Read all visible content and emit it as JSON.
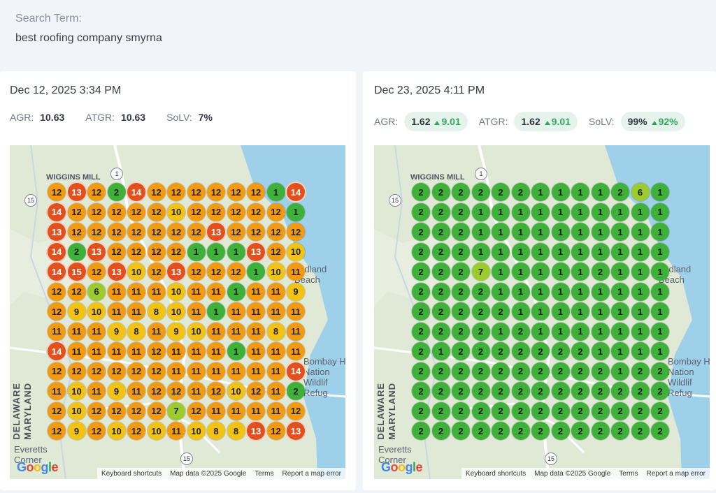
{
  "search": {
    "label": "Search Term:",
    "value": "best roofing company smyrna"
  },
  "colors": {
    "green": "#3fb13a",
    "lime": "#9ccb2e",
    "yellow": "#f2c314",
    "orange": "#f39a13",
    "red": "#e1501d",
    "water": "#9fd0ea",
    "land": "#dde8d2",
    "pill_bg": "#e6f3ec",
    "up": "#2faa5c"
  },
  "map_common": {
    "place_wiggins": "WIGGINS MILL",
    "place_woodland": "oodland\nBeach",
    "place_everetts": "Everetts\nCorner",
    "place_bombay": "Bombay H\nNation\nWildlif\nRefug",
    "state_de": "DELAWARE",
    "state_md": "MARYLAND",
    "route_1": "1",
    "route_15": "15",
    "route_15b": "15",
    "logo": "Google",
    "keyboard": "Keyboard shortcuts",
    "mapdata": "Map data ©2025 Google",
    "terms": "Terms",
    "report": "Report a map error"
  },
  "reports": [
    {
      "date": "Dec 12, 2025 3:34 PM",
      "agr_label": "AGR:",
      "agr": "10.63",
      "atgr_label": "ATGR:",
      "atgr": "10.63",
      "solv_label": "SoLV:",
      "solv": "7%",
      "grid": [
        [
          12,
          13,
          12,
          2,
          14,
          12,
          12,
          12,
          12,
          12,
          12,
          1,
          14
        ],
        [
          14,
          12,
          12,
          12,
          12,
          12,
          10,
          12,
          12,
          12,
          12,
          12,
          1
        ],
        [
          13,
          12,
          12,
          12,
          12,
          12,
          12,
          12,
          13,
          12,
          12,
          12,
          12
        ],
        [
          14,
          2,
          13,
          12,
          12,
          12,
          12,
          1,
          1,
          1,
          13,
          12,
          10
        ],
        [
          14,
          15,
          12,
          13,
          10,
          12,
          13,
          12,
          12,
          12,
          1,
          10,
          11
        ],
        [
          12,
          12,
          6,
          11,
          11,
          11,
          10,
          11,
          11,
          1,
          11,
          11,
          9
        ],
        [
          12,
          9,
          10,
          11,
          11,
          8,
          10,
          11,
          1,
          11,
          11,
          11,
          11
        ],
        [
          11,
          11,
          11,
          9,
          8,
          11,
          9,
          10,
          11,
          11,
          11,
          8,
          11
        ],
        [
          14,
          11,
          11,
          11,
          11,
          12,
          11,
          11,
          11,
          1,
          11,
          11,
          11
        ],
        [
          12,
          12,
          12,
          12,
          12,
          12,
          11,
          11,
          11,
          11,
          11,
          11,
          14
        ],
        [
          11,
          10,
          11,
          9,
          11,
          12,
          12,
          11,
          12,
          10,
          12,
          11,
          2
        ],
        [
          12,
          10,
          12,
          12,
          12,
          12,
          7,
          12,
          11,
          11,
          11,
          11,
          12
        ],
        [
          12,
          9,
          12,
          10,
          12,
          10,
          11,
          10,
          8,
          8,
          13,
          12,
          13
        ]
      ]
    },
    {
      "date": "Dec 23, 2025 4:11 PM",
      "agr_label": "AGR:",
      "agr": "1.62",
      "agr_delta": "9.01",
      "atgr_label": "ATGR:",
      "atgr": "1.62",
      "atgr_delta": "9.01",
      "solv_label": "SoLV:",
      "solv": "99%",
      "solv_delta": "92%",
      "grid": [
        [
          2,
          2,
          2,
          2,
          2,
          2,
          1,
          1,
          1,
          1,
          2,
          6,
          1
        ],
        [
          2,
          2,
          2,
          1,
          1,
          1,
          1,
          1,
          1,
          1,
          1,
          1,
          1
        ],
        [
          2,
          2,
          2,
          1,
          1,
          1,
          1,
          1,
          1,
          1,
          1,
          1,
          1
        ],
        [
          2,
          2,
          2,
          1,
          1,
          1,
          1,
          1,
          1,
          1,
          1,
          1,
          1
        ],
        [
          2,
          2,
          2,
          7,
          1,
          1,
          1,
          1,
          1,
          2,
          1,
          1,
          1
        ],
        [
          2,
          2,
          2,
          2,
          1,
          1,
          1,
          1,
          1,
          1,
          1,
          1,
          1
        ],
        [
          2,
          2,
          2,
          2,
          2,
          1,
          1,
          1,
          1,
          1,
          1,
          1,
          1
        ],
        [
          2,
          2,
          2,
          2,
          1,
          2,
          1,
          1,
          1,
          1,
          1,
          1,
          1
        ],
        [
          2,
          1,
          2,
          2,
          2,
          2,
          2,
          2,
          2,
          1,
          1,
          1,
          1
        ],
        [
          2,
          2,
          2,
          2,
          2,
          2,
          2,
          2,
          2,
          2,
          1,
          2,
          2
        ],
        [
          2,
          2,
          2,
          2,
          2,
          2,
          2,
          2,
          2,
          2,
          2,
          2,
          2
        ],
        [
          2,
          2,
          2,
          2,
          2,
          2,
          2,
          2,
          2,
          2,
          2,
          2,
          2
        ],
        [
          2,
          2,
          2,
          2,
          2,
          2,
          2,
          2,
          2,
          2,
          2,
          2,
          2
        ]
      ]
    }
  ]
}
